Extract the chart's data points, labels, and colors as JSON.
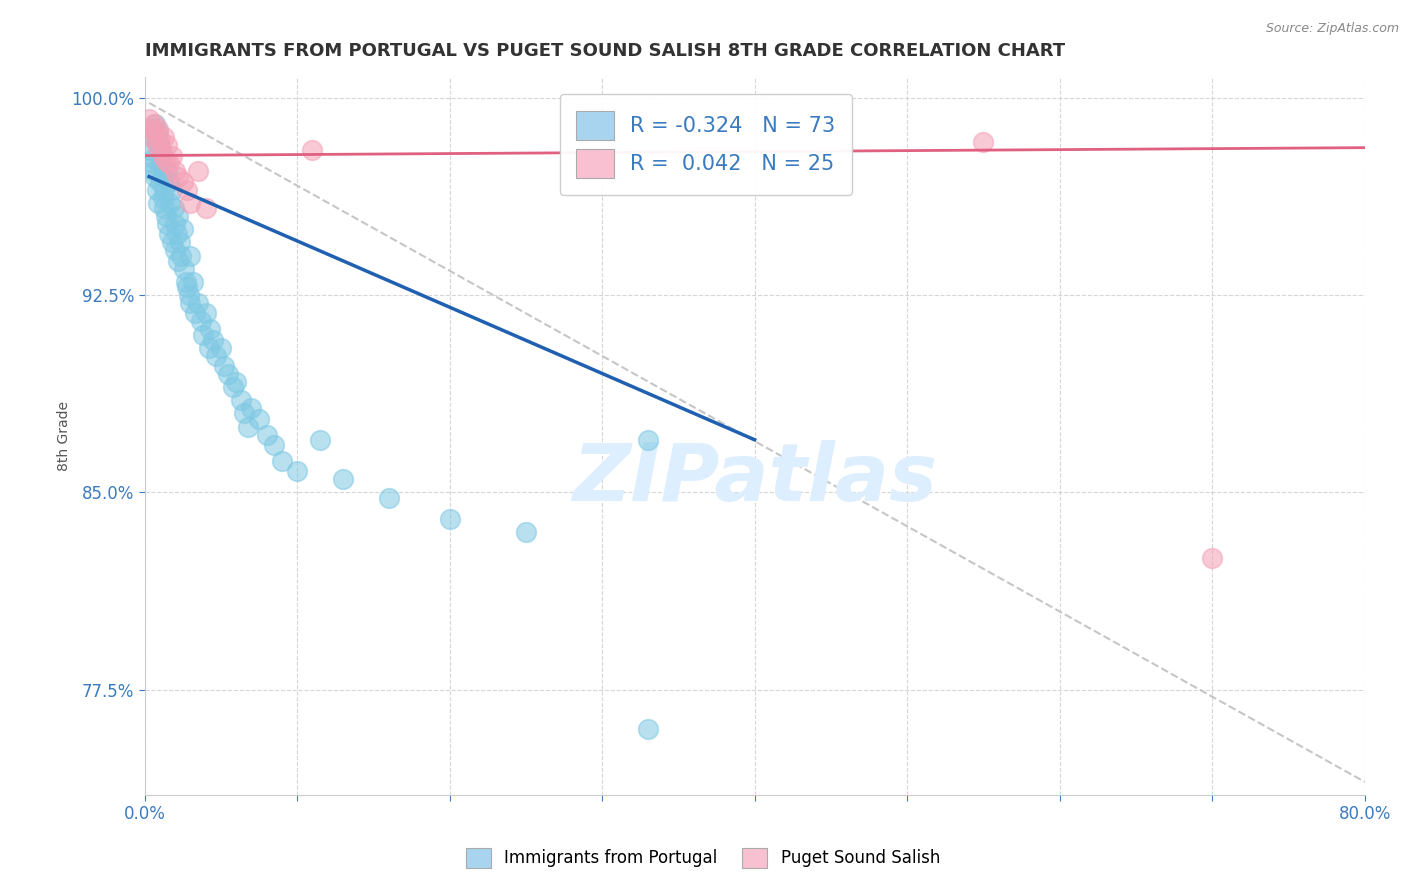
{
  "title": "IMMIGRANTS FROM PORTUGAL VS PUGET SOUND SALISH 8TH GRADE CORRELATION CHART",
  "source_text": "Source: ZipAtlas.com",
  "ylabel": "8th Grade",
  "xlim": [
    0.0,
    0.8
  ],
  "ylim": [
    0.735,
    1.008
  ],
  "xticks": [
    0.0,
    0.1,
    0.2,
    0.3,
    0.4,
    0.5,
    0.6,
    0.7,
    0.8
  ],
  "xticklabels": [
    "0.0%",
    "",
    "",
    "",
    "",
    "",
    "",
    "",
    "80.0%"
  ],
  "yticks": [
    0.775,
    0.85,
    0.925,
    1.0
  ],
  "yticklabels": [
    "77.5%",
    "85.0%",
    "92.5%",
    "100.0%"
  ],
  "r_blue": -0.324,
  "n_blue": 73,
  "r_pink": 0.042,
  "n_pink": 25,
  "blue_color": "#7ec8e3",
  "pink_color": "#f4a0b5",
  "blue_line_color": "#2060b0",
  "pink_line_color": "#e06080",
  "dashed_line_color": "#c0c0c0",
  "legend_blue_color": "#a8d4f0",
  "legend_pink_color": "#f8c0d0",
  "watermark_color": "#ddeeff",
  "blue_scatter_x": [
    0.003,
    0.004,
    0.005,
    0.005,
    0.006,
    0.006,
    0.007,
    0.007,
    0.008,
    0.008,
    0.009,
    0.009,
    0.01,
    0.01,
    0.011,
    0.012,
    0.012,
    0.013,
    0.013,
    0.014,
    0.015,
    0.015,
    0.016,
    0.016,
    0.017,
    0.018,
    0.018,
    0.019,
    0.02,
    0.02,
    0.021,
    0.022,
    0.022,
    0.023,
    0.024,
    0.025,
    0.026,
    0.027,
    0.028,
    0.029,
    0.03,
    0.03,
    0.032,
    0.033,
    0.035,
    0.037,
    0.038,
    0.04,
    0.042,
    0.043,
    0.045,
    0.047,
    0.05,
    0.052,
    0.055,
    0.058,
    0.06,
    0.063,
    0.065,
    0.068,
    0.07,
    0.075,
    0.08,
    0.085,
    0.09,
    0.1,
    0.115,
    0.13,
    0.16,
    0.2,
    0.25,
    0.33,
    0.33
  ],
  "blue_scatter_y": [
    0.98,
    0.988,
    0.985,
    0.975,
    0.977,
    0.972,
    0.99,
    0.97,
    0.983,
    0.965,
    0.987,
    0.96,
    0.982,
    0.968,
    0.975,
    0.97,
    0.962,
    0.965,
    0.958,
    0.955,
    0.972,
    0.952,
    0.968,
    0.948,
    0.96,
    0.965,
    0.945,
    0.958,
    0.952,
    0.942,
    0.948,
    0.955,
    0.938,
    0.945,
    0.94,
    0.95,
    0.935,
    0.93,
    0.928,
    0.925,
    0.94,
    0.922,
    0.93,
    0.918,
    0.922,
    0.915,
    0.91,
    0.918,
    0.905,
    0.912,
    0.908,
    0.902,
    0.905,
    0.898,
    0.895,
    0.89,
    0.892,
    0.885,
    0.88,
    0.875,
    0.882,
    0.878,
    0.872,
    0.868,
    0.862,
    0.858,
    0.87,
    0.855,
    0.848,
    0.84,
    0.835,
    0.87,
    0.76
  ],
  "pink_scatter_x": [
    0.003,
    0.004,
    0.005,
    0.006,
    0.007,
    0.008,
    0.009,
    0.01,
    0.011,
    0.012,
    0.013,
    0.014,
    0.015,
    0.016,
    0.018,
    0.02,
    0.022,
    0.025,
    0.028,
    0.03,
    0.035,
    0.04,
    0.11,
    0.55,
    0.7
  ],
  "pink_scatter_y": [
    0.992,
    0.988,
    0.985,
    0.99,
    0.987,
    0.982,
    0.988,
    0.984,
    0.98,
    0.978,
    0.985,
    0.976,
    0.982,
    0.975,
    0.978,
    0.972,
    0.97,
    0.968,
    0.965,
    0.96,
    0.972,
    0.958,
    0.98,
    0.983,
    0.825
  ],
  "blue_line_x": [
    0.003,
    0.4
  ],
  "blue_line_y": [
    0.97,
    0.87
  ],
  "pink_line_x": [
    0.0,
    0.8
  ],
  "pink_line_y": [
    0.978,
    0.981
  ],
  "dashed_line_x": [
    0.003,
    0.8
  ],
  "dashed_line_y": [
    0.998,
    0.74
  ]
}
